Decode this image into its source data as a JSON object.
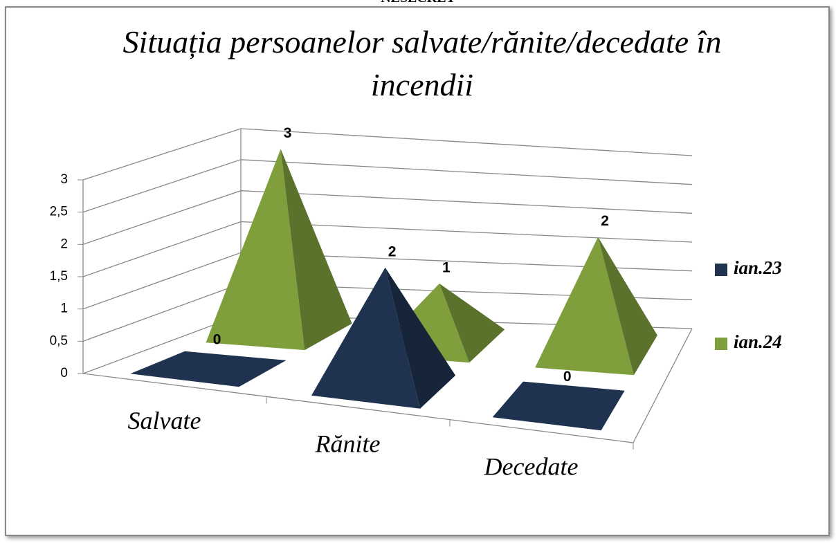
{
  "page_label": "NESECRET",
  "chart_data": {
    "type": "pyramid3d",
    "title": "Situația persoanelor salvate/rănite/decedate în incendii",
    "categories": [
      "Salvate",
      "Rănite",
      "Decedate"
    ],
    "series": [
      {
        "name": "ian.23",
        "color": "#1f3350",
        "values": [
          0,
          2,
          0
        ]
      },
      {
        "name": "ian.24",
        "color": "#7f9f3d",
        "values": [
          3,
          1,
          2
        ]
      }
    ],
    "ylim": [
      0,
      3
    ],
    "yticks": [
      0,
      {
        "value": 0.5,
        "label": "0,5"
      },
      1,
      {
        "value": 1.5,
        "label": "1,5"
      },
      2,
      {
        "value": 2.5,
        "label": "2,5"
      },
      3
    ],
    "grid": true,
    "legend": "right"
  }
}
